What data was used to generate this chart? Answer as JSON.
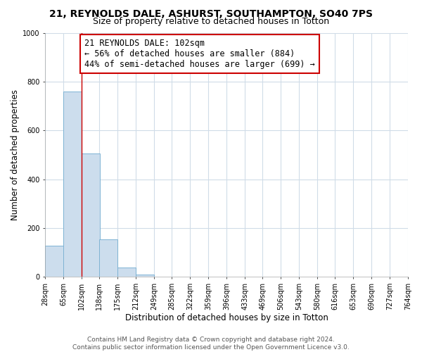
{
  "title": "21, REYNOLDS DALE, ASHURST, SOUTHAMPTON, SO40 7PS",
  "subtitle": "Size of property relative to detached houses in Totton",
  "xlabel": "Distribution of detached houses by size in Totton",
  "ylabel": "Number of detached properties",
  "footer_line1": "Contains HM Land Registry data © Crown copyright and database right 2024.",
  "footer_line2": "Contains public sector information licensed under the Open Government Licence v3.0.",
  "bin_edges": [
    28,
    65,
    102,
    138,
    175,
    212,
    249,
    285,
    322,
    359,
    396,
    433,
    469,
    506,
    543,
    580,
    616,
    653,
    690,
    727,
    764
  ],
  "bar_heights": [
    128,
    760,
    505,
    152,
    38,
    10,
    0,
    0,
    0,
    0,
    0,
    0,
    0,
    0,
    0,
    0,
    0,
    0,
    0,
    0
  ],
  "bar_color": "#ccdded",
  "bar_edge_color": "#7eb3d4",
  "property_line_x": 102,
  "property_line_color": "#cc0000",
  "annotation_text": "21 REYNOLDS DALE: 102sqm\n← 56% of detached houses are smaller (884)\n44% of semi-detached houses are larger (699) →",
  "annotation_box_color": "#cc0000",
  "annotation_text_color": "black",
  "annotation_bg_color": "white",
  "ylim": [
    0,
    1000
  ],
  "xlim": [
    28,
    764
  ],
  "tick_labels": [
    "28sqm",
    "65sqm",
    "102sqm",
    "138sqm",
    "175sqm",
    "212sqm",
    "249sqm",
    "285sqm",
    "322sqm",
    "359sqm",
    "396sqm",
    "433sqm",
    "469sqm",
    "506sqm",
    "543sqm",
    "580sqm",
    "616sqm",
    "653sqm",
    "690sqm",
    "727sqm",
    "764sqm"
  ],
  "background_color": "#ffffff",
  "plot_bg_color": "#ffffff",
  "grid_color": "#d0dce8",
  "title_fontsize": 10,
  "subtitle_fontsize": 9,
  "axis_label_fontsize": 8.5,
  "tick_fontsize": 7,
  "annotation_fontsize": 8.5,
  "footer_fontsize": 6.5
}
